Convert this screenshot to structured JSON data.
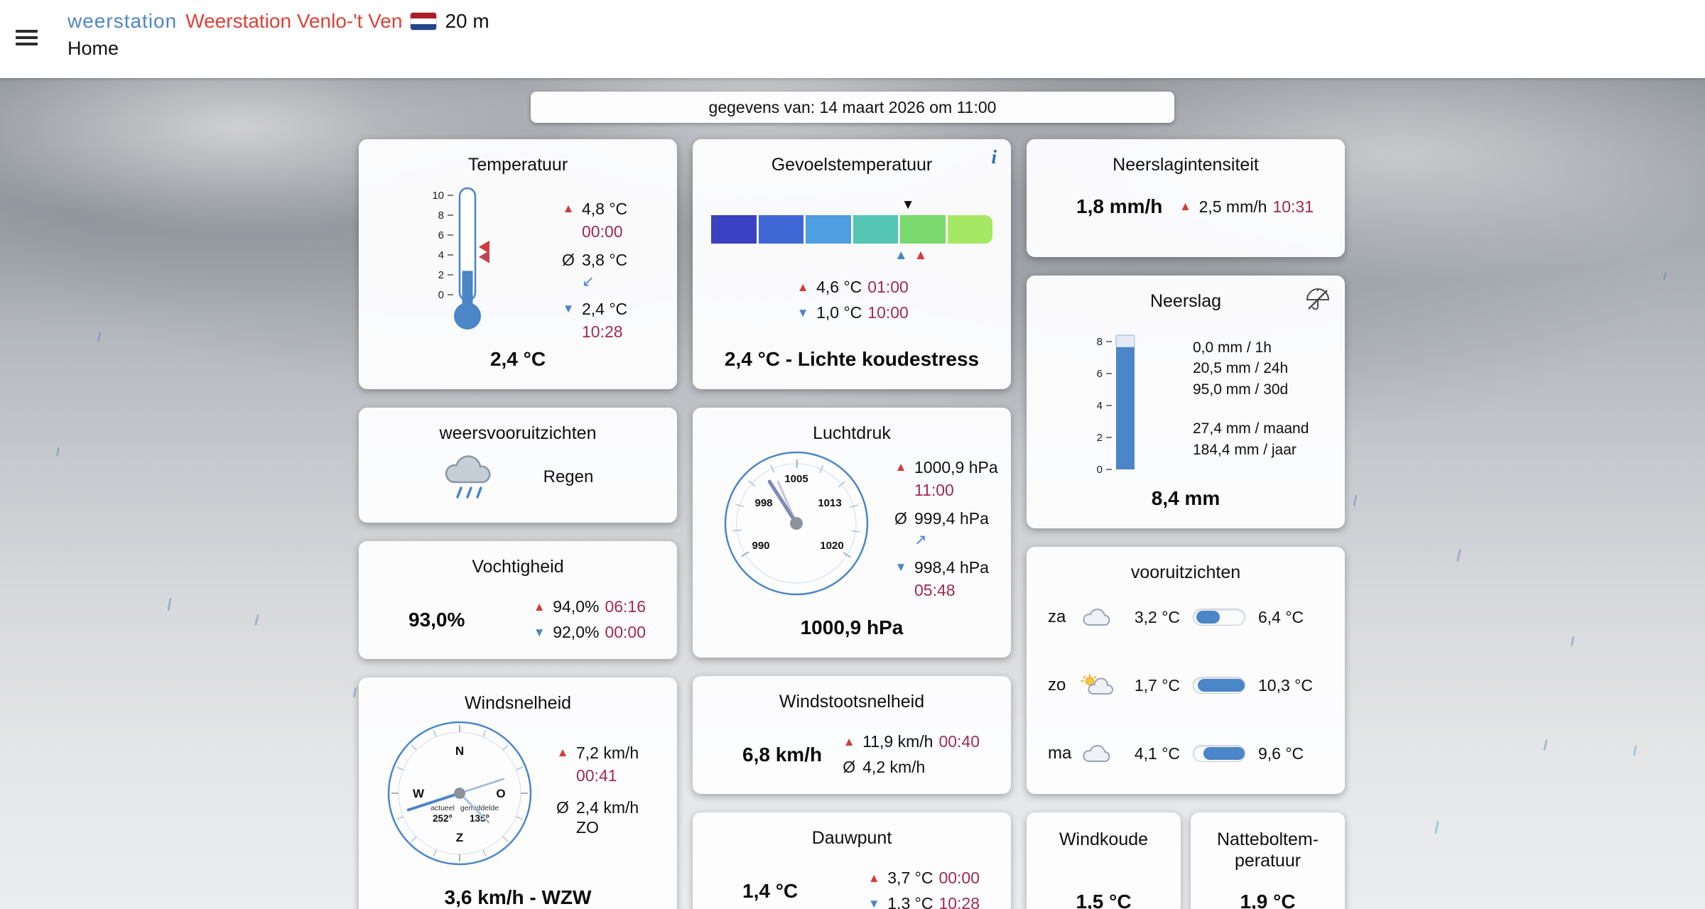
{
  "header": {
    "menu_icon": "hamburger-menu",
    "brand": "weerstation",
    "station_name": "Weerstation Venlo-'t Ven",
    "flag_icon": "netherlands-flag",
    "altitude": "20 m",
    "nav_current": "Home"
  },
  "info_bar": {
    "text": "gegevens van: 14 maart 2026 om 11:00"
  },
  "theme": {
    "accent_blue": "#4a86c8",
    "alert_red": "#d23b3b",
    "time_text": "#a02a50",
    "brand_blue": "#4e86c6",
    "station_red": "#e04038"
  },
  "cards": {
    "temperature": {
      "title": "Temperatuur",
      "current": "2,4 °C",
      "max": {
        "value": "4,8 °C",
        "time": "00:00"
      },
      "avg": {
        "prefix": "Ø",
        "value": "3,8 °C",
        "trend": "↙"
      },
      "min": {
        "value": "2,4 °C",
        "time": "10:28"
      },
      "thermo": {
        "scale_min": 0,
        "scale_max": 10,
        "ticks": [
          10,
          8,
          6,
          4,
          2,
          0
        ],
        "fill_value": 2.4,
        "markers": [
          {
            "value": 4.8,
            "color": "#d23b3b"
          },
          {
            "value": 3.8,
            "color": "#c24455"
          }
        ]
      }
    },
    "feels_like": {
      "title": "Gevoelstemperatuur",
      "info_icon": "i",
      "summary": "2,4 °C - Lichte koudestress",
      "max": {
        "value": "4,6 °C",
        "time": "01:00"
      },
      "min": {
        "value": "1,0 °C",
        "time": "10:00"
      },
      "gradient_colors": [
        "#3a41c2",
        "#3f68d6",
        "#4f9de2",
        "#55c5b4",
        "#79d96c",
        "#a6e863"
      ],
      "markers": {
        "current_pct": 70,
        "min_pct": 67.5,
        "max_pct": 74.5
      }
    },
    "precip_intensity": {
      "title": "Neerslagintensiteit",
      "current": "1,8 mm/h",
      "max": {
        "value": "2,5 mm/h",
        "time": "10:31"
      }
    },
    "precipitation": {
      "title": "Neerslag",
      "icon": "umbrella-off",
      "total": "8,4 mm",
      "axis_ticks": [
        8,
        6,
        4,
        2,
        0
      ],
      "bar": {
        "value": 8.4,
        "axis_max": 8.8
      },
      "stats_recent": [
        "0,0 mm / 1h",
        "20,5 mm / 24h",
        "95,0 mm / 30d"
      ],
      "stats_longterm": [
        "27,4 mm / maand",
        "184,4 mm / jaar"
      ]
    },
    "forecast_summary": {
      "title": "weersvooruitzichten",
      "icon": "rain-cloud",
      "text": "Regen"
    },
    "pressure": {
      "title": "Luchtdruk",
      "current": "1000,9 hPa",
      "max": {
        "value": "1000,9 hPa",
        "time": "11:00"
      },
      "avg": {
        "prefix": "Ø",
        "value": "999,4 hPa",
        "trend": "↗"
      },
      "min": {
        "value": "998,4 hPa",
        "time": "05:48"
      },
      "gauge": {
        "labels": [
          "1005",
          "998",
          "1013",
          "990",
          "1020"
        ],
        "min": 990,
        "max": 1020,
        "value": 1000.9,
        "start_deg": 239,
        "sweep_deg": 243
      }
    },
    "humidity": {
      "title": "Vochtigheid",
      "current": "93,0%",
      "max": {
        "value": "94,0%",
        "time": "06:16"
      },
      "min": {
        "value": "92,0%",
        "time": "00:00"
      }
    },
    "wind": {
      "title": "Windsnelheid",
      "current": "3,6 km/h - WZW",
      "max": {
        "value": "7,2 km/h",
        "time": "00:41"
      },
      "avg": {
        "prefix": "Ø",
        "value": "2,4 km/h",
        "direction": "ZO"
      },
      "compass": {
        "labels": {
          "n": "N",
          "e": "O",
          "s": "Z",
          "w": "W"
        },
        "actual_label": "actueel",
        "actual_deg_text": "252°",
        "avg_label": "gemiddelde",
        "avg_deg_text": "135°",
        "actual_deg": 252,
        "avg_deg": 135
      }
    },
    "gust": {
      "title": "Windstootsnelheid",
      "current": "6,8 km/h",
      "max": {
        "value": "11,9 km/h",
        "time": "00:40"
      },
      "avg": {
        "prefix": "Ø",
        "value": "4,2 km/h"
      }
    },
    "forecast": {
      "title": "vooruitzichten",
      "days": [
        {
          "label": "za",
          "icon": "cloud",
          "min": "3,2 °C",
          "max": "6,4 °C",
          "bar_start_pct": 6,
          "bar_end_pct": 52
        },
        {
          "label": "zo",
          "icon": "sun-cloud",
          "min": "1,7 °C",
          "max": "10,3 °C",
          "bar_start_pct": 8,
          "bar_end_pct": 100
        },
        {
          "label": "ma",
          "icon": "cloud",
          "min": "4,1 °C",
          "max": "9,6 °C",
          "bar_start_pct": 20,
          "bar_end_pct": 100
        }
      ]
    },
    "dewpoint": {
      "title": "Dauwpunt",
      "current": "1,4 °C",
      "max": {
        "value": "3,7 °C",
        "time": "00:00"
      },
      "min": {
        "value": "1,3 °C",
        "time": "10:28"
      }
    },
    "windchill": {
      "title": "Windkoude",
      "current": "1,5 °C"
    },
    "wetbulb": {
      "title": "Natteboltem-peratuur",
      "current": "1,9 °C"
    }
  }
}
